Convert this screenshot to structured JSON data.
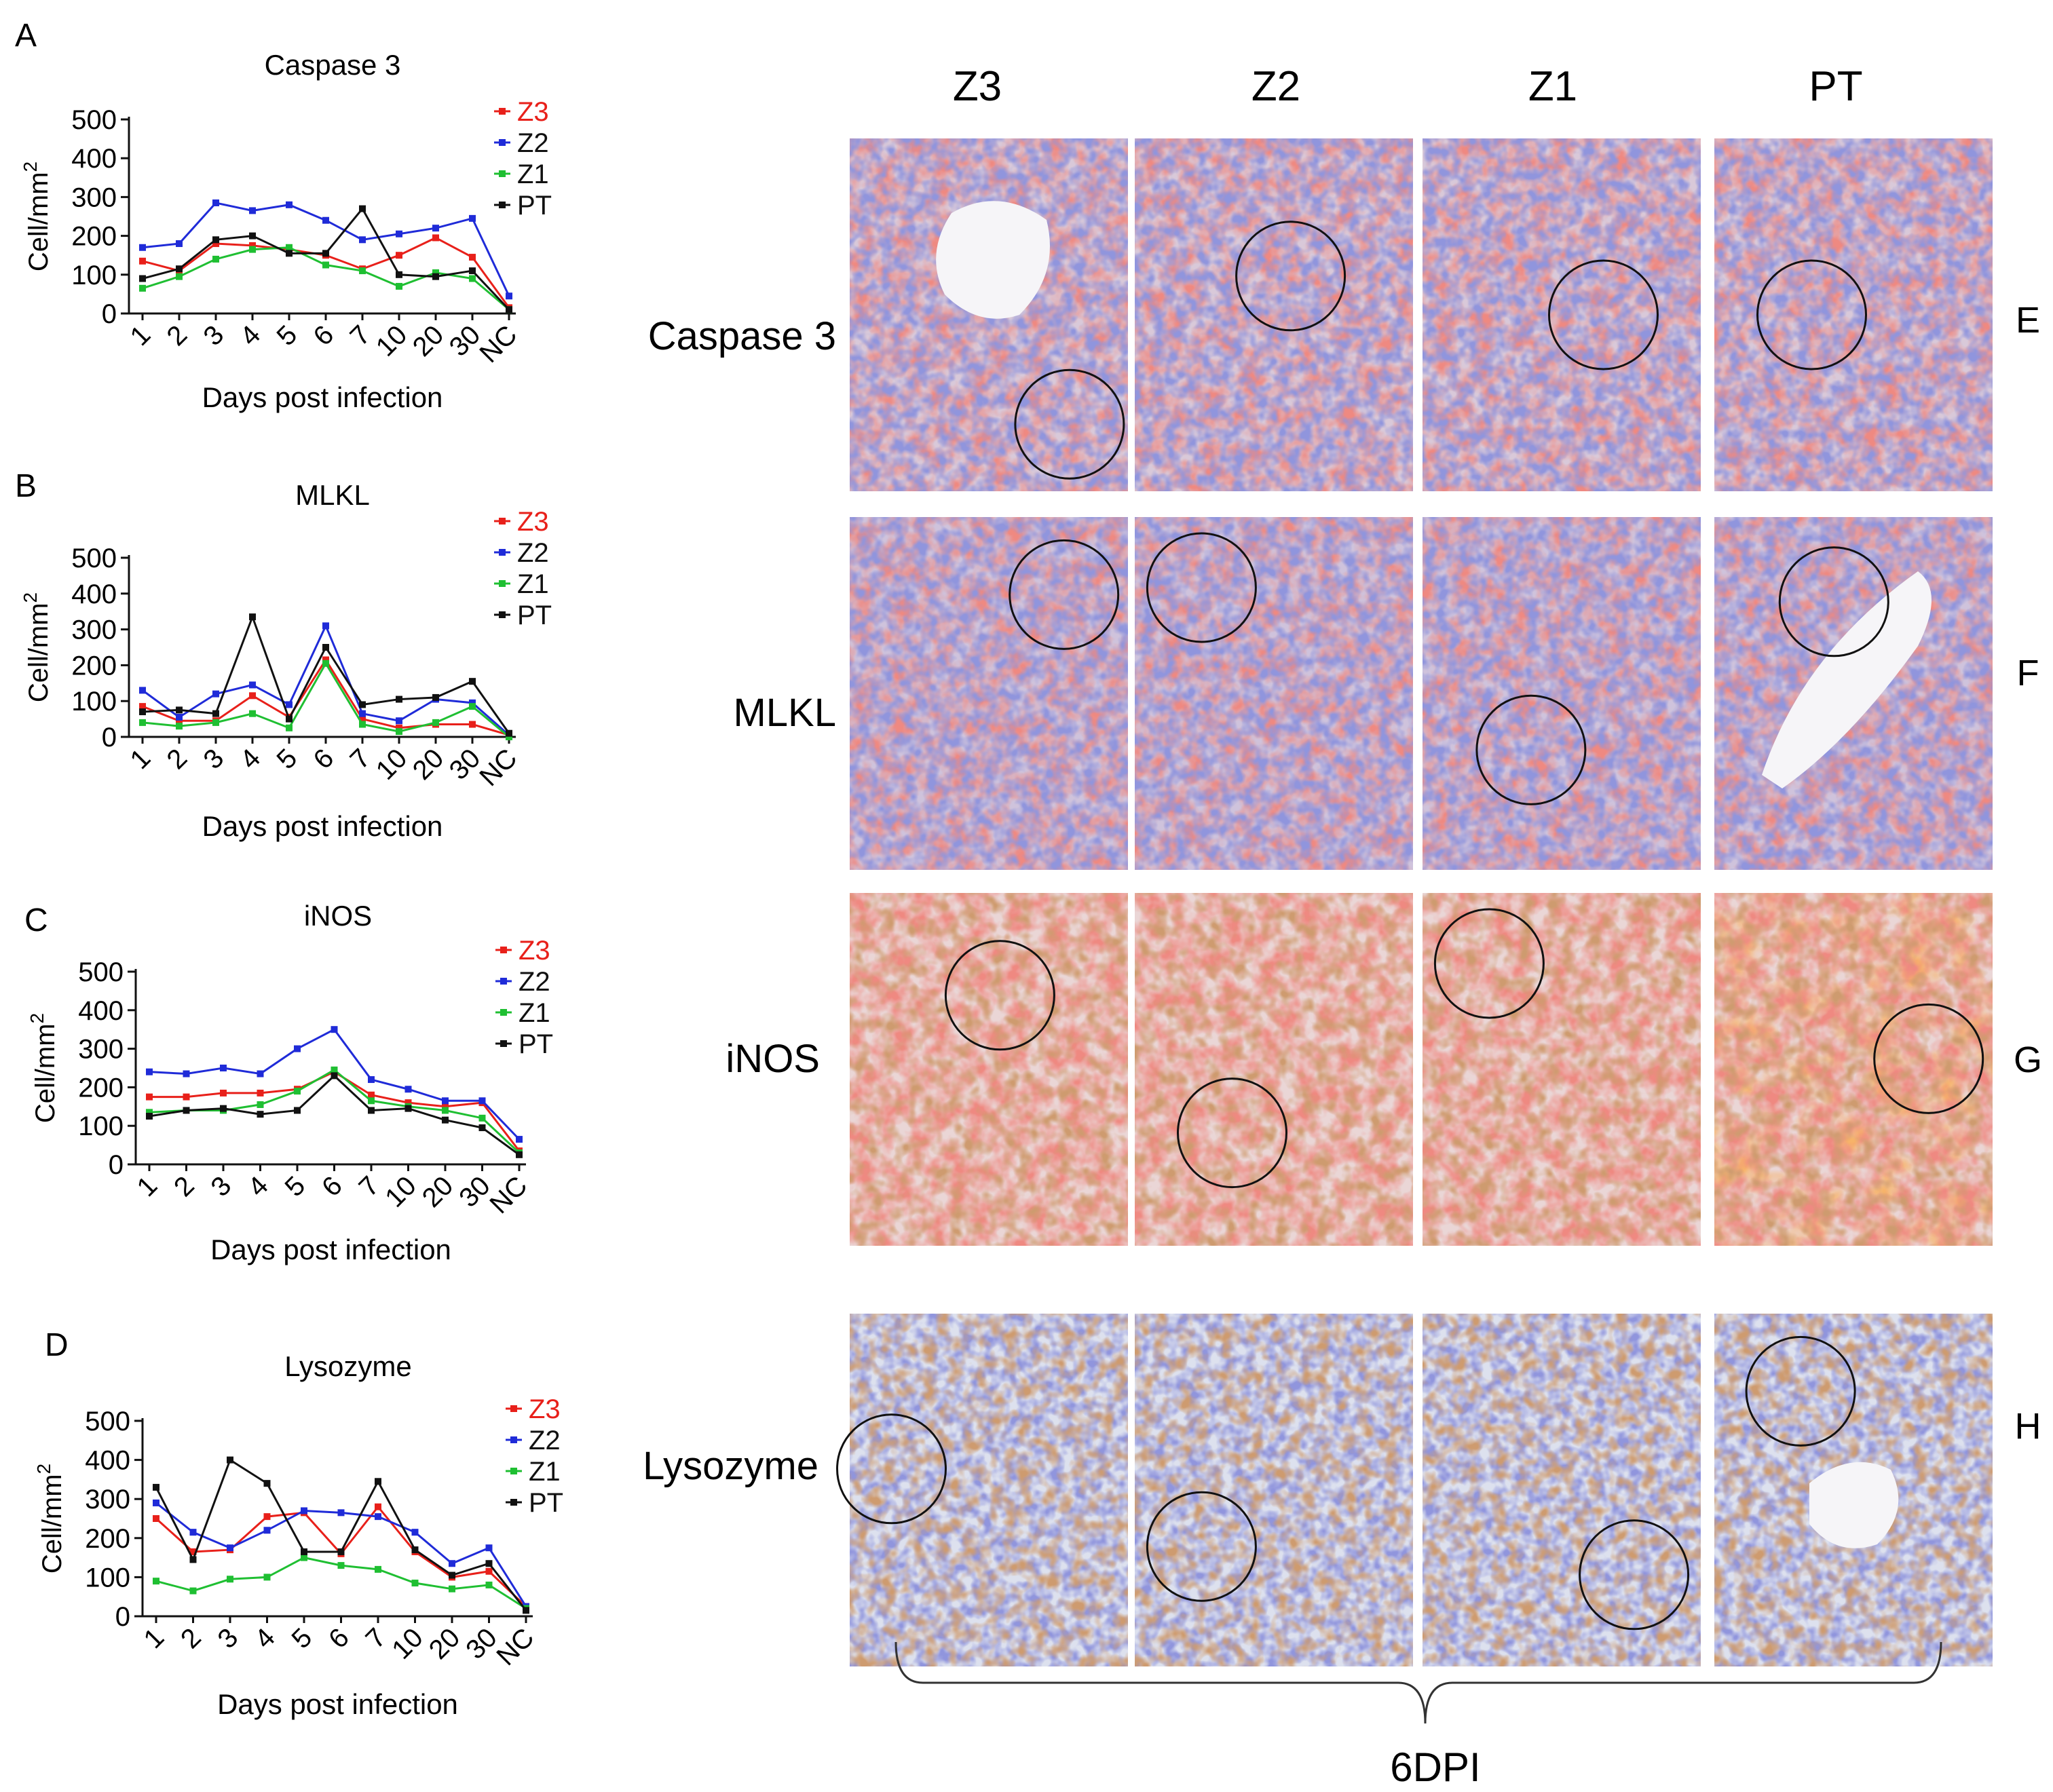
{
  "chart_data": [
    {
      "type": "line",
      "panel": "A",
      "title": "Caspase 3",
      "xlabel": "Days post infection",
      "ylabel": "Cell/mm",
      "ylabel_sup": "2",
      "categories": [
        "1",
        "2",
        "3",
        "4",
        "5",
        "6",
        "7",
        "10",
        "20",
        "30",
        "NC"
      ],
      "ylim": [
        0,
        500
      ],
      "yticks": [
        "0",
        "100",
        "200",
        "300",
        "400",
        "500"
      ],
      "series": [
        {
          "name": "Z3",
          "values": [
            135,
            110,
            180,
            175,
            165,
            150,
            115,
            150,
            195,
            145,
            15
          ]
        },
        {
          "name": "Z2",
          "values": [
            170,
            180,
            285,
            265,
            280,
            240,
            190,
            205,
            220,
            245,
            45
          ]
        },
        {
          "name": "Z1",
          "values": [
            65,
            95,
            140,
            165,
            170,
            125,
            110,
            70,
            105,
            90,
            10
          ]
        },
        {
          "name": "PT",
          "values": [
            90,
            115,
            190,
            200,
            155,
            155,
            270,
            100,
            95,
            110,
            10
          ]
        }
      ]
    },
    {
      "type": "line",
      "panel": "B",
      "title": "MLKL",
      "xlabel": "Days post infection",
      "ylabel": "Cell/mm",
      "ylabel_sup": "2",
      "categories": [
        "1",
        "2",
        "3",
        "4",
        "5",
        "6",
        "7",
        "10",
        "20",
        "30",
        "NC"
      ],
      "ylim": [
        0,
        500
      ],
      "yticks": [
        "0",
        "100",
        "200",
        "300",
        "400",
        "500"
      ],
      "series": [
        {
          "name": "Z3",
          "values": [
            85,
            45,
            45,
            115,
            55,
            215,
            50,
            25,
            35,
            35,
            5
          ]
        },
        {
          "name": "Z2",
          "values": [
            130,
            55,
            120,
            145,
            90,
            310,
            65,
            45,
            105,
            95,
            5
          ]
        },
        {
          "name": "Z1",
          "values": [
            40,
            30,
            40,
            65,
            25,
            205,
            35,
            15,
            40,
            85,
            0
          ]
        },
        {
          "name": "PT",
          "values": [
            70,
            75,
            65,
            335,
            50,
            250,
            90,
            105,
            110,
            155,
            10
          ]
        }
      ]
    },
    {
      "type": "line",
      "panel": "C",
      "title": "iNOS",
      "xlabel": "Days post infection",
      "ylabel": "Cell/mm",
      "ylabel_sup": "2",
      "categories": [
        "1",
        "2",
        "3",
        "4",
        "5",
        "6",
        "7",
        "10",
        "20",
        "30",
        "NC"
      ],
      "ylim": [
        0,
        500
      ],
      "yticks": [
        "0",
        "100",
        "200",
        "300",
        "400",
        "500"
      ],
      "series": [
        {
          "name": "Z3",
          "values": [
            175,
            175,
            185,
            185,
            195,
            240,
            180,
            160,
            150,
            160,
            35
          ]
        },
        {
          "name": "Z2",
          "values": [
            240,
            235,
            250,
            235,
            300,
            350,
            220,
            195,
            165,
            165,
            65
          ]
        },
        {
          "name": "Z1",
          "values": [
            135,
            140,
            140,
            155,
            190,
            245,
            165,
            150,
            140,
            120,
            30
          ]
        },
        {
          "name": "PT",
          "values": [
            125,
            140,
            145,
            130,
            140,
            230,
            140,
            145,
            115,
            95,
            25
          ]
        }
      ]
    },
    {
      "type": "line",
      "panel": "D",
      "title": "Lysozyme",
      "xlabel": "Days post infection",
      "ylabel": "Cell/mm",
      "ylabel_sup": "2",
      "categories": [
        "1",
        "2",
        "3",
        "4",
        "5",
        "6",
        "7",
        "10",
        "20",
        "30",
        "NC"
      ],
      "ylim": [
        0,
        500
      ],
      "yticks": [
        "0",
        "100",
        "200",
        "300",
        "400",
        "500"
      ],
      "series": [
        {
          "name": "Z3",
          "values": [
            250,
            165,
            170,
            255,
            265,
            160,
            280,
            165,
            100,
            115,
            25
          ]
        },
        {
          "name": "Z2",
          "values": [
            290,
            215,
            175,
            220,
            270,
            265,
            255,
            215,
            135,
            175,
            25
          ]
        },
        {
          "name": "Z1",
          "values": [
            90,
            65,
            95,
            100,
            150,
            130,
            120,
            85,
            70,
            80,
            20
          ]
        },
        {
          "name": "PT",
          "values": [
            330,
            145,
            400,
            340,
            165,
            165,
            345,
            170,
            105,
            135,
            15
          ]
        }
      ]
    }
  ],
  "series_colors": {
    "Z3": "#e8201a",
    "Z2": "#1f2bd8",
    "Z1": "#1fbf32",
    "PT": "#111111"
  },
  "micrographs": {
    "columns": [
      "Z3",
      "Z2",
      "Z1",
      "PT"
    ],
    "rows": [
      {
        "label": "Caspase 3",
        "letter": "E"
      },
      {
        "label": "MLKL",
        "letter": "F"
      },
      {
        "label": "iNOS",
        "letter": "G"
      },
      {
        "label": "Lysozyme",
        "letter": "H"
      }
    ],
    "bracket_label": "6DPI"
  }
}
